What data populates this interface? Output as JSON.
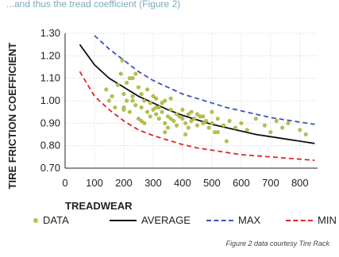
{
  "caption": "...and thus the tread coefficient (Figure 2)",
  "colors": {
    "data": "#b7c24a",
    "average": "#111111",
    "max": "#3a55b7",
    "min": "#e0262a",
    "grid": "#c8c8c8"
  },
  "credit": "Figure 2 data courtesy Tire Rack",
  "chart_data": {
    "type": "scatter",
    "title": "",
    "xlabel": "TREADWEAR",
    "ylabel": "TIRE FRICTION COEFFICIENT",
    "xlim": [
      0,
      860
    ],
    "ylim": [
      0.7,
      1.3
    ],
    "x_ticks": [
      0,
      100,
      200,
      300,
      400,
      500,
      600,
      700,
      800
    ],
    "x_tick_labels": [
      "0",
      "100",
      "200",
      "300",
      "400",
      "500",
      "600",
      "700",
      "800"
    ],
    "y_ticks": [
      0.7,
      0.8,
      0.9,
      1.0,
      1.1,
      1.2,
      1.3
    ],
    "y_tick_labels": [
      "0.70",
      "0.80",
      "0.90",
      "1.00",
      "1.10",
      "1.20",
      "1.30"
    ],
    "grid": true,
    "legend_position": "bottom",
    "series": [
      {
        "name": "DATA",
        "style": "points",
        "points": [
          [
            140,
            1.05
          ],
          [
            150,
            1.0
          ],
          [
            160,
            1.02
          ],
          [
            170,
            0.97
          ],
          [
            180,
            1.07
          ],
          [
            190,
            1.12
          ],
          [
            195,
            1.18
          ],
          [
            200,
            1.03
          ],
          [
            200,
            0.96
          ],
          [
            210,
            1.0
          ],
          [
            210,
            1.08
          ],
          [
            220,
            0.95
          ],
          [
            220,
            1.1
          ],
          [
            230,
            1.02
          ],
          [
            230,
            1.0
          ],
          [
            240,
            0.98
          ],
          [
            240,
            1.12
          ],
          [
            250,
            0.92
          ],
          [
            250,
            1.06
          ],
          [
            260,
            0.97
          ],
          [
            260,
            1.03
          ],
          [
            270,
            0.9
          ],
          [
            270,
            1.0
          ],
          [
            280,
            0.95
          ],
          [
            280,
            1.05
          ],
          [
            290,
            0.99
          ],
          [
            290,
            0.93
          ],
          [
            300,
            1.02
          ],
          [
            300,
            0.96
          ],
          [
            310,
            0.94
          ],
          [
            310,
            1.01
          ],
          [
            320,
            0.97
          ],
          [
            320,
            0.92
          ],
          [
            330,
            0.99
          ],
          [
            330,
            0.95
          ],
          [
            340,
            0.9
          ],
          [
            340,
            1.0
          ],
          [
            350,
            0.93
          ],
          [
            350,
            0.88
          ],
          [
            360,
            0.96
          ],
          [
            360,
            0.92
          ],
          [
            370,
            0.91
          ],
          [
            380,
            0.94
          ],
          [
            380,
            0.89
          ],
          [
            390,
            0.93
          ],
          [
            400,
            0.92
          ],
          [
            400,
            0.96
          ],
          [
            410,
            0.9
          ],
          [
            420,
            0.88
          ],
          [
            420,
            0.94
          ],
          [
            430,
            0.91
          ],
          [
            440,
            0.92
          ],
          [
            450,
            0.89
          ],
          [
            450,
            0.94
          ],
          [
            460,
            0.93
          ],
          [
            470,
            0.9
          ],
          [
            480,
            0.91
          ],
          [
            490,
            0.88
          ],
          [
            500,
            0.95
          ],
          [
            500,
            0.9
          ],
          [
            510,
            0.86
          ],
          [
            520,
            0.92
          ],
          [
            540,
            0.89
          ],
          [
            550,
            0.82
          ],
          [
            560,
            0.91
          ],
          [
            580,
            0.88
          ],
          [
            600,
            0.9
          ],
          [
            620,
            0.87
          ],
          [
            650,
            0.92
          ],
          [
            680,
            0.89
          ],
          [
            700,
            0.86
          ],
          [
            720,
            0.91
          ],
          [
            740,
            0.88
          ],
          [
            760,
            0.9
          ],
          [
            800,
            0.87
          ],
          [
            820,
            0.85
          ],
          [
            230,
            1.1
          ],
          [
            310,
            0.97
          ],
          [
            360,
            1.01
          ],
          [
            430,
            0.95
          ],
          [
            470,
            0.93
          ],
          [
            260,
            0.91
          ],
          [
            340,
            0.86
          ],
          [
            410,
            0.85
          ],
          [
            200,
            0.97
          ],
          [
            520,
            0.86
          ]
        ]
      },
      {
        "name": "AVERAGE",
        "style": "solid",
        "points": [
          [
            50,
            1.25
          ],
          [
            100,
            1.16
          ],
          [
            150,
            1.1
          ],
          [
            200,
            1.06
          ],
          [
            250,
            1.02
          ],
          [
            300,
            0.99
          ],
          [
            350,
            0.96
          ],
          [
            400,
            0.935
          ],
          [
            450,
            0.915
          ],
          [
            500,
            0.895
          ],
          [
            550,
            0.88
          ],
          [
            600,
            0.865
          ],
          [
            650,
            0.85
          ],
          [
            700,
            0.84
          ],
          [
            750,
            0.83
          ],
          [
            800,
            0.82
          ],
          [
            850,
            0.81
          ]
        ]
      },
      {
        "name": "MAX",
        "style": "dashed",
        "points": [
          [
            100,
            1.29
          ],
          [
            150,
            1.23
          ],
          [
            200,
            1.18
          ],
          [
            250,
            1.13
          ],
          [
            300,
            1.09
          ],
          [
            350,
            1.06
          ],
          [
            400,
            1.03
          ],
          [
            450,
            1.01
          ],
          [
            500,
            0.99
          ],
          [
            550,
            0.97
          ],
          [
            600,
            0.955
          ],
          [
            650,
            0.94
          ],
          [
            700,
            0.925
          ],
          [
            750,
            0.915
          ],
          [
            800,
            0.905
          ],
          [
            850,
            0.895
          ]
        ]
      },
      {
        "name": "MIN",
        "style": "dashed",
        "points": [
          [
            50,
            1.13
          ],
          [
            100,
            1.02
          ],
          [
            150,
            0.96
          ],
          [
            200,
            0.91
          ],
          [
            250,
            0.87
          ],
          [
            300,
            0.845
          ],
          [
            350,
            0.825
          ],
          [
            400,
            0.805
          ],
          [
            450,
            0.79
          ],
          [
            500,
            0.78
          ],
          [
            550,
            0.77
          ],
          [
            600,
            0.76
          ],
          [
            650,
            0.755
          ],
          [
            700,
            0.75
          ],
          [
            750,
            0.745
          ],
          [
            800,
            0.74
          ],
          [
            850,
            0.735
          ]
        ]
      }
    ]
  },
  "legend": {
    "data": "DATA",
    "average": "AVERAGE",
    "max": "MAX",
    "min": "MIN"
  }
}
